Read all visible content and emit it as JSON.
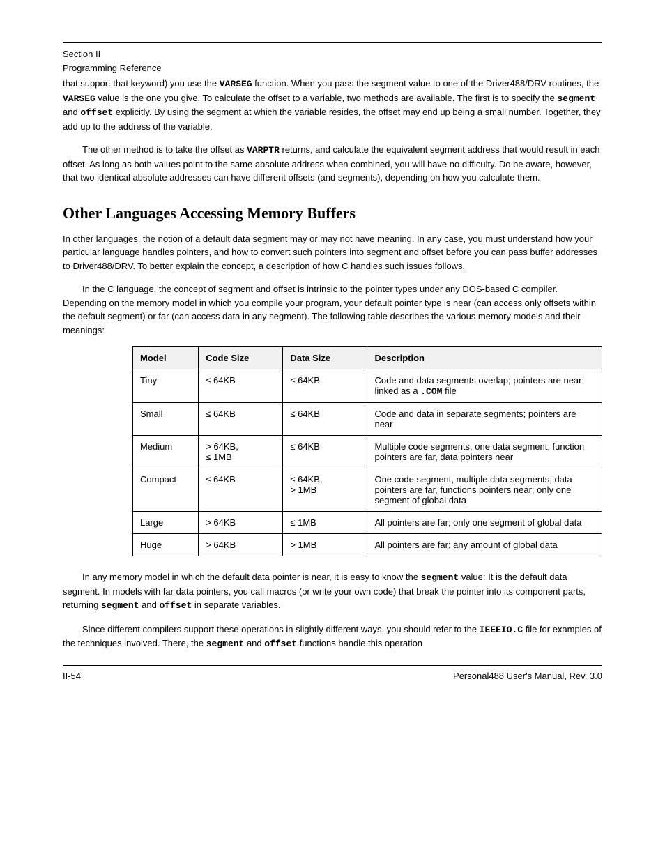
{
  "header": {
    "title": "Section II",
    "subtitle": "Programming Reference"
  },
  "para1_a": "that support that keyword) you use the ",
  "para1_kw1": "VARSEG",
  "para1_b": " function. When you pass the segment value to one of the Driver488/DRV routines, the ",
  "para1_kw2": "VARSEG",
  "para1_c": " value is the one you give. To calculate the offset to a variable, two methods are available. The first is to specify the ",
  "para1_kw3": "segment",
  "para1_d": " and ",
  "para1_kw4": "offset",
  "para1_e": " explicitly. By using the segment at which the variable resides, the offset may end up being a small number. Together, they add up to the address of the variable.",
  "para2_a": "The other method is to take the offset as ",
  "para2_kw1": "VARPTR",
  "para2_b": " returns, and calculate the equivalent segment address that would result in each offset. As long as both values point to the same absolute address when combined, you will have no difficulty. Do be aware, however, that two identical absolute addresses can have different offsets (and segments), depending on how you calculate them.",
  "heading_memory": "Other Languages Accessing Memory Buffers",
  "para3": "In other languages, the notion of a default data segment may or may not have meaning. In any case, you must understand how your particular language handles pointers, and how to convert such pointers into segment and offset before you can pass buffer addresses to Driver488/DRV. To better explain the concept, a description of how C handles such issues follows.",
  "para4": "In the C language, the concept of segment and offset is intrinsic to the pointer types under any DOS-based C compiler. Depending on the memory model in which you compile your program, your default pointer type is near (can access only offsets within the default segment) or far (can access data in any segment). The following table describes the various memory models and their meanings:",
  "table": {
    "headers": [
      "Model",
      "Code Size",
      "Data Size",
      "Description"
    ],
    "rows": [
      {
        "model": "Tiny",
        "code_rel": "≤",
        "code_kb": " 64KB",
        "data_rel": "≤",
        "data_kb": " 64KB",
        "desc_a": "Code and data segments overlap; pointers are near; linked as a ",
        "desc_code": ".COM",
        "desc_b": " file"
      },
      {
        "model": "Small",
        "code_rel": "≤",
        "code_kb": " 64KB",
        "data_rel": "≤",
        "data_kb": " 64KB",
        "desc_a": "Code and data in separate segments; pointers are near",
        "desc_code": "",
        "desc_b": ""
      },
      {
        "model": "Medium",
        "code_rel": ">",
        "code_kb": " 64KB,",
        "code2_rel": "≤",
        "code2_kb": " 1MB",
        "data_rel": "≤",
        "data_kb": " 64KB",
        "desc_a": "Multiple code segments, one data segment; function pointers are far, data pointers near",
        "desc_code": "",
        "desc_b": ""
      },
      {
        "model": "Compact",
        "code_rel": "≤",
        "code_kb": " 64KB",
        "data_rel": "≤",
        "data_kb": " 64KB,",
        "data2_rel": ">",
        "data2_kb": " 1MB",
        "desc_a": "One code segment, multiple data segments; data pointers are far, functions pointers near; only one segment of global data",
        "desc_code": "",
        "desc_b": ""
      },
      {
        "model": "Large",
        "code_rel": ">",
        "code_kb": " 64KB",
        "data_rel": "≤",
        "data_kb": " 1MB",
        "desc_a": "All pointers are far; only one segment of global data",
        "desc_code": "",
        "desc_b": ""
      },
      {
        "model": "Huge",
        "code_rel": ">",
        "code_kb": " 64KB",
        "data_rel": ">",
        "data_kb": " 1MB",
        "desc_a": "All pointers are far; any amount of global data",
        "desc_code": "",
        "desc_b": ""
      }
    ]
  },
  "para5_a": "In any memory model in which the default data pointer is near, it is easy to know the ",
  "para5_kw1": "segment",
  "para5_b": " value: It is the default data segment. In models with far data pointers, you call macros (or write your own code) that break the pointer into its component parts, returning ",
  "para5_kw2": "segment",
  "para5_c": " and ",
  "para5_kw3": "offset",
  "para5_d": " in separate variables.",
  "para6_a": "Since different compilers support these operations in slightly different ways, you should refer to the ",
  "para6_kw1": "IEEEIO.C",
  "para6_b": " file for examples of the techniques involved. There, the ",
  "para6_kw2": "segment",
  "para6_c": " and ",
  "para6_kw3": "offset",
  "para6_d": " functions handle this operation",
  "footer": {
    "left": "II-54",
    "right": "Personal488 User's Manual, Rev. 3.0"
  }
}
